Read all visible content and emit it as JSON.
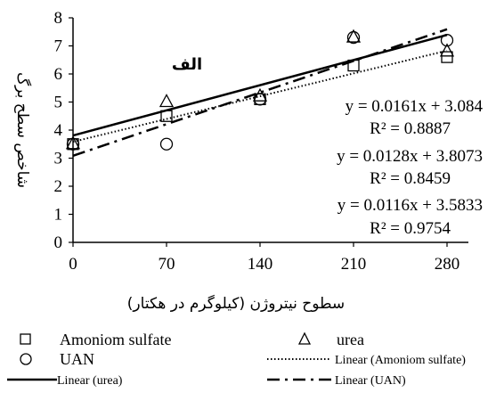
{
  "chart_data": {
    "type": "scatter",
    "panel_label": "الف",
    "xlabel": "سطوح نیتروژن (کیلوگرم در هکتار)",
    "ylabel": "شاخص سطح برگ",
    "x": [
      0,
      70,
      140,
      210,
      280
    ],
    "xticks": [
      "0",
      "70",
      "140",
      "210",
      "280"
    ],
    "yticks": [
      "0",
      "1",
      "2",
      "3",
      "4",
      "5",
      "6",
      "7",
      "8"
    ],
    "xlim": [
      0,
      280
    ],
    "ylim": [
      0,
      8
    ],
    "grid": false,
    "legend_position": "bottom",
    "series": [
      {
        "name": "Amoniom sulfate",
        "marker": "square",
        "values": [
          3.5,
          4.5,
          5.1,
          6.3,
          6.6
        ],
        "trend_name": "Linear (Amoniom sulfate)",
        "trend_style": "dotted",
        "slope": 0.0116,
        "intercept": 3.5833
      },
      {
        "name": "urea",
        "marker": "triangle",
        "values": [
          3.5,
          5.0,
          5.2,
          7.3,
          6.8
        ],
        "trend_name": "Linear (urea)",
        "trend_style": "solid",
        "slope": 0.0128,
        "intercept": 3.8073
      },
      {
        "name": "UAN",
        "marker": "circle",
        "values": [
          3.5,
          3.5,
          5.1,
          7.3,
          7.2
        ],
        "trend_name": "Linear (UAN)",
        "trend_style": "dashdot",
        "slope": 0.0161,
        "intercept": 3.084
      }
    ],
    "annotations": [
      {
        "eq": "y = 0.0161x + 3.084",
        "r2": "R² = 0.8887"
      },
      {
        "eq": "y = 0.0128x + 3.8073",
        "r2": "R² = 0.8459"
      },
      {
        "eq": "y = 0.0116x + 3.5833",
        "r2": "R² = 0.9754"
      }
    ]
  },
  "legend": {
    "amoniom": "Amoniom sulfate",
    "urea": "urea",
    "uan": "UAN",
    "linear_amoniom": "Linear (Amoniom sulfate)",
    "linear_urea": "Linear (urea)",
    "linear_uan": "Linear (UAN)"
  }
}
